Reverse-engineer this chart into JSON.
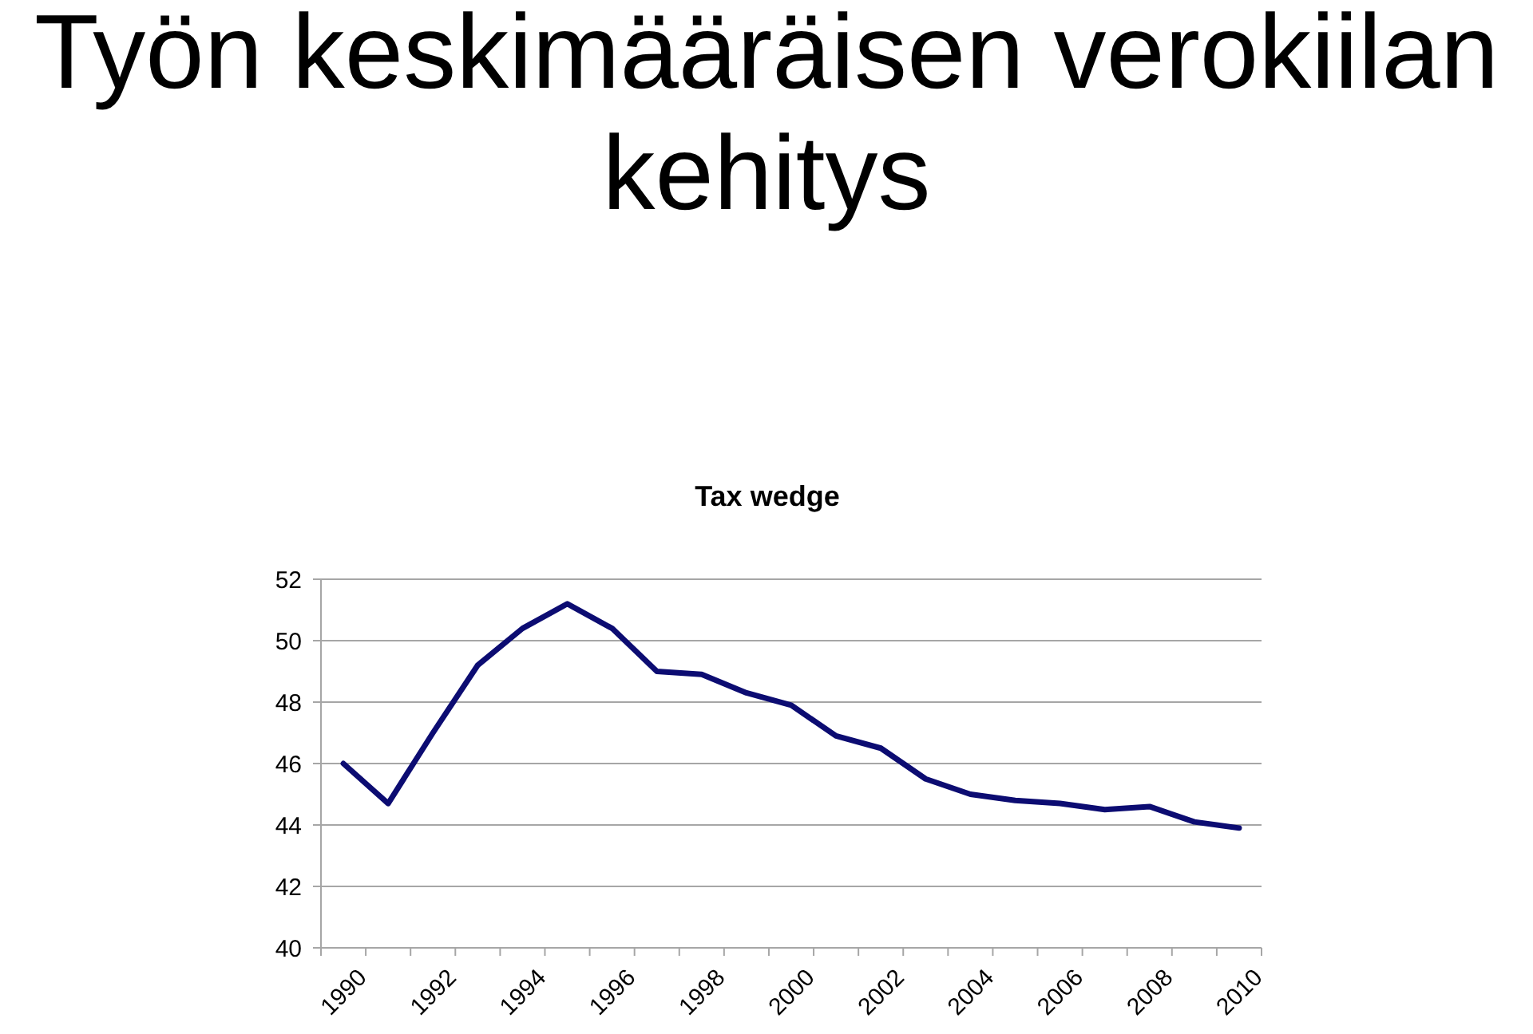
{
  "chart_data": {
    "type": "line",
    "title": "Työn keskimääräisen verokiilan kehitys",
    "subtitle": "Tax wedge",
    "categories": [
      "1990",
      null,
      "1992",
      null,
      "1994",
      null,
      "1996",
      null,
      "1998",
      null,
      "2000",
      null,
      "2002",
      null,
      "2004",
      null,
      "2006",
      null,
      "2008",
      null,
      "2010"
    ],
    "series": [
      {
        "color": "#0c0c72",
        "values": [
          46.0,
          44.7,
          47.0,
          49.2,
          50.4,
          51.2,
          50.4,
          49.0,
          48.9,
          48.3,
          47.9,
          46.9,
          46.5,
          45.5,
          45.0,
          44.8,
          44.7,
          44.5,
          44.6,
          44.1,
          43.9
        ]
      }
    ],
    "ylim": [
      40,
      52
    ],
    "yticks": [
      40,
      42,
      44,
      46,
      48,
      50,
      52
    ],
    "grid": "y",
    "marker": "none",
    "line_style": "solid"
  }
}
